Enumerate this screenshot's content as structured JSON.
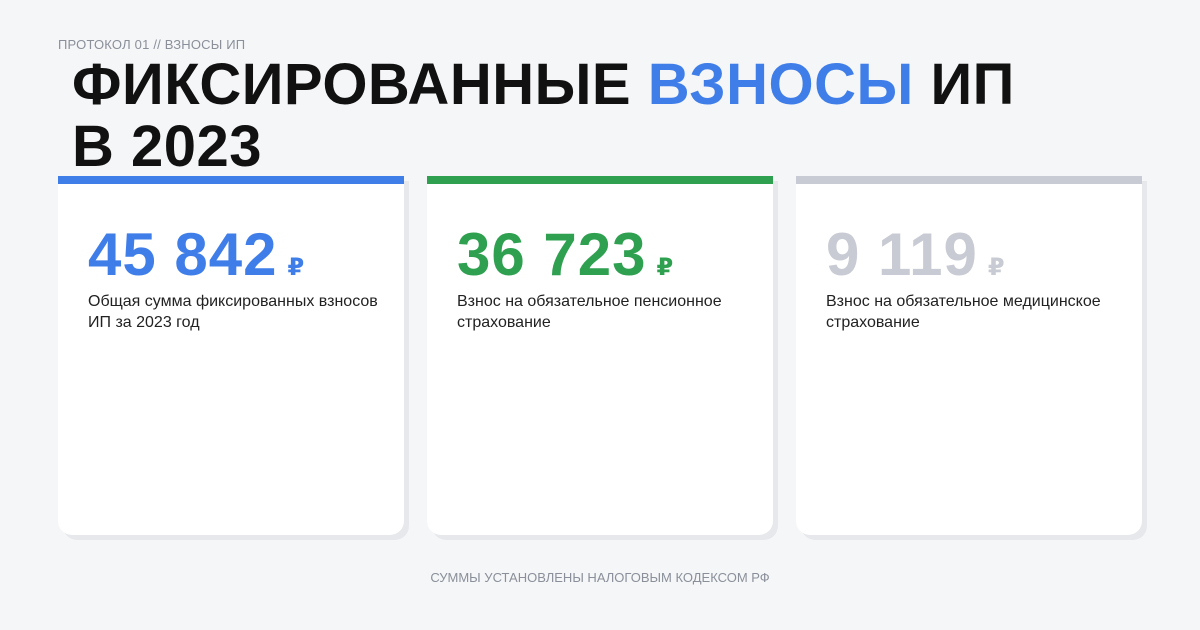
{
  "header": {
    "kicker": "ПРОТОКОЛ 01 // ВЗНОСЫ ИП",
    "title_parts": [
      "ФИКСИРОВАННЫЕ",
      "ВЗНОСЫ",
      "ИП В 2023"
    ],
    "accent_color": "#3f7ee8"
  },
  "cards": [
    {
      "value": "45 842",
      "currency": "₽",
      "description": "Общая сумма фиксированных взносов ИП за 2023 год",
      "color": "#3f7ee8"
    },
    {
      "value": "36 723",
      "currency": "₽",
      "description": "Взнос на обязательное пенсионное страхование",
      "color": "#2ea04f"
    },
    {
      "value": "9 119",
      "currency": "₽",
      "description": "Взнос на обязательное медицинское страхование",
      "color": "#c8cbd3"
    }
  ],
  "footer": {
    "note": "СУММЫ УСТАНОВЛЕНЫ НАЛОГОВЫМ КОДЕКСОМ РФ"
  }
}
